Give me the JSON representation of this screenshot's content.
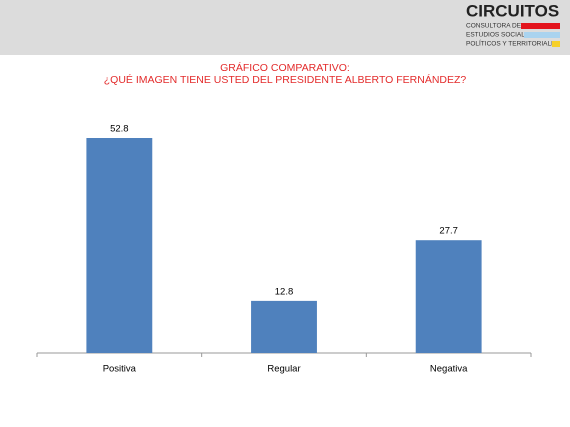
{
  "header": {
    "logo": "CIRCUITOS",
    "logo_lines": [
      "CONSULTORA DE",
      "ESTUDIOS SOCIALES,",
      "POLÍTICOS Y TERRITORIALES"
    ]
  },
  "chart_data": {
    "type": "bar",
    "title": "GRÁFICO COMPARATIVO:",
    "subtitle": "¿QUÉ IMAGEN TIENE USTED DEL PRESIDENTE ALBERTO FERNÁNDEZ?",
    "categories": [
      "Positiva",
      "Regular",
      "Negativa"
    ],
    "values": [
      52.8,
      12.8,
      27.7
    ],
    "color": "#4f81bd"
  }
}
